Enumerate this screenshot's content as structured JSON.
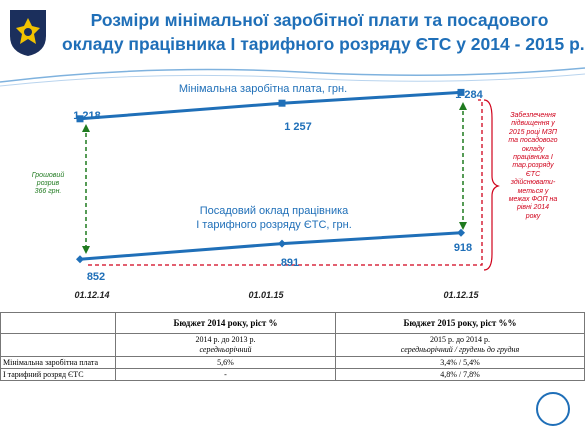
{
  "title": {
    "line1": "Розміри мінімальної заробітної плати та посадового",
    "line2": "окладу працівника І тарифного розряду ЄТС у 2014 - 2015 р.р."
  },
  "colors": {
    "title": "#1f6fb8",
    "series_line": "#1f6fb8",
    "gap_arrow": "#1f7a1f",
    "red_note": "#d0021b"
  },
  "chart_data": {
    "type": "line",
    "categories": [
      "01.12.14",
      "01.01.15",
      "01.12.15"
    ],
    "series": [
      {
        "name": "Мінімальна заробітна плата, грн.",
        "values": [
          1218,
          1257,
          1284
        ],
        "labels": [
          "1 218",
          "1 257",
          "1 284"
        ]
      },
      {
        "name": "Посадовий оклад працівника І тарифного розряду ЄТС, грн.",
        "name_line1": "Посадовий оклад працівника",
        "name_line2": "І тарифного розряду ЄТС, грн.",
        "values": [
          852,
          891,
          918
        ],
        "labels": [
          "852",
          "891",
          "918"
        ]
      }
    ],
    "annotations": {
      "gap": [
        "Грошовий",
        "розрив",
        "366 грн."
      ],
      "right_note": [
        "Забезпечення",
        "підвищення у",
        "2015 році МЗП",
        "та посадового",
        "окладу",
        "працівника І",
        "тар.розряду",
        "ЄТС",
        "здійснювати-",
        "меться у",
        "межах ФОП на",
        "рівні 2014",
        "року"
      ]
    }
  },
  "table": {
    "col1_header": "",
    "col2_header": "Бюджет 2014 року, ріст %",
    "col3_header": "Бюджет 2015 року, ріст %%",
    "col2_sub1": "2014 р. до 2013 р.",
    "col2_sub2": "середньорічний",
    "col3_sub1": "2015 р. до 2014 р.",
    "col3_sub2": "середньорічний / грудень до грудня",
    "rows": [
      {
        "label": "Мінімальна заробітна плата",
        "v2014": "5,6%",
        "v2015": "3,4% / 5,4%"
      },
      {
        "label": "І тарифний розряд ЄТС",
        "v2014": "-",
        "v2015": "4,8% / 7,8%"
      }
    ]
  }
}
